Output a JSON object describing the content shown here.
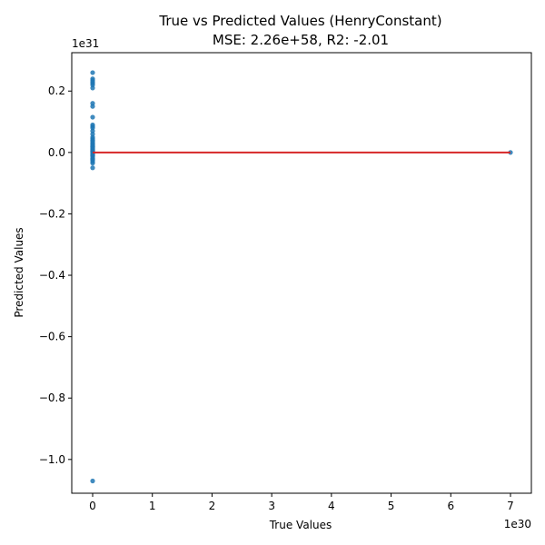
{
  "chart_data": {
    "type": "scatter",
    "title_line1": "True vs Predicted Values (HenryConstant)",
    "title_line2": "MSE: 2.26e+58, R2: -2.01",
    "xlabel": "True Values",
    "ylabel": "Predicted Values",
    "x_offset_label": "1e30",
    "y_offset_label": "1e31",
    "x_scale": 1e+30,
    "y_scale": 1e+31,
    "xlim": [
      -0.35,
      7.35
    ],
    "ylim": [
      -1.11,
      0.325
    ],
    "x_ticks": [
      0,
      1,
      2,
      3,
      4,
      5,
      6,
      7
    ],
    "x_tick_labels": [
      "0",
      "1",
      "2",
      "3",
      "4",
      "5",
      "6",
      "7"
    ],
    "y_ticks": [
      0.2,
      0.0,
      -0.2,
      -0.4,
      -0.6,
      -0.8,
      -1.0
    ],
    "y_tick_labels": [
      "0.2",
      "0.0",
      "−0.2",
      "−0.4",
      "−0.6",
      "−0.8",
      "−1.0"
    ],
    "grid": false,
    "point_color": "#1f77b4",
    "line_color": "#d62728",
    "points_x": [
      0,
      0,
      0,
      0,
      0,
      0,
      0,
      0,
      0,
      0,
      0,
      0,
      0,
      0,
      0,
      0,
      0,
      0,
      0,
      0,
      0,
      0,
      0,
      0,
      0,
      0,
      0,
      0,
      0,
      0,
      0,
      0,
      0,
      0,
      0,
      0,
      0,
      0,
      0,
      0,
      0,
      0,
      0,
      0,
      0,
      0,
      0,
      7.0
    ],
    "points_y": [
      0.26,
      0.24,
      0.235,
      0.23,
      0.225,
      0.22,
      0.21,
      0.16,
      0.15,
      0.115,
      0.09,
      0.085,
      0.08,
      0.07,
      0.06,
      0.05,
      0.045,
      0.04,
      0.035,
      0.03,
      0.025,
      0.02,
      0.015,
      0.01,
      0.005,
      0.0,
      -0.005,
      -0.01,
      -0.015,
      -0.02,
      -0.025,
      -0.03,
      -0.01,
      0.012,
      0.022,
      0.008,
      -0.004,
      0.018,
      -0.022,
      0.028,
      0.038,
      -0.035,
      -0.05,
      0.002,
      -0.008,
      0.004,
      -1.07,
      0.0
    ],
    "reference_line": {
      "x": [
        0,
        7.0
      ],
      "y": [
        0.0,
        0.0
      ]
    }
  }
}
